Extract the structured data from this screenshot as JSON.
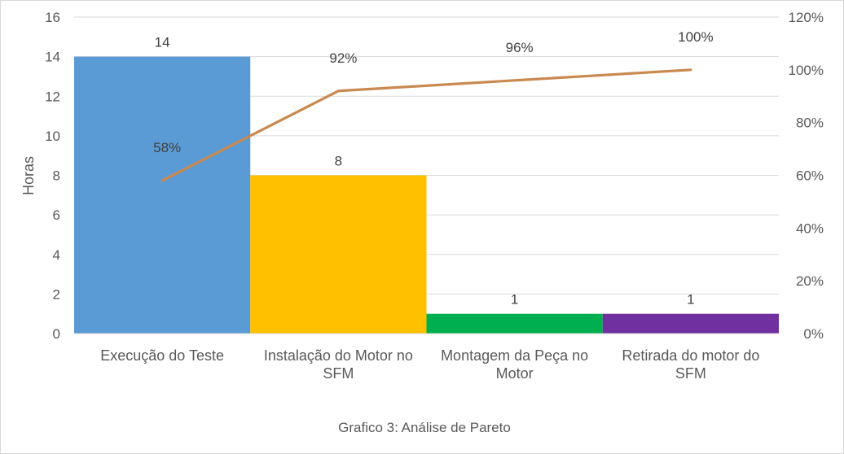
{
  "chart_data": {
    "type": "bar",
    "caption": "Grafico 3: Análise de Pareto",
    "ylabel": "Horas",
    "ylim": [
      0,
      16
    ],
    "y_ticks": [
      0,
      2,
      4,
      6,
      8,
      10,
      12,
      14,
      16
    ],
    "y2lim": [
      0,
      120
    ],
    "y2_ticks": [
      "0%",
      "20%",
      "40%",
      "60%",
      "80%",
      "100%",
      "120%"
    ],
    "grid": true,
    "legend": "none",
    "categories": [
      [
        "Execução do Teste"
      ],
      [
        "Instalação do Motor no",
        "SFM"
      ],
      [
        "Montagem da Peça no",
        "Motor"
      ],
      [
        "Retirada do motor do",
        "SFM"
      ]
    ],
    "series": [
      {
        "type": "bar",
        "values": [
          14,
          8,
          1,
          1
        ],
        "labels": [
          "14",
          "8",
          "1",
          "1"
        ],
        "colors": [
          "#5b9bd5",
          "#ffc000",
          "#00b050",
          "#7030a0"
        ]
      },
      {
        "type": "line",
        "axis": "secondary",
        "values": [
          58,
          92,
          96,
          100
        ],
        "labels": [
          "58%",
          "92%",
          "96%",
          "100%"
        ],
        "color": "#c9894f"
      }
    ]
  }
}
